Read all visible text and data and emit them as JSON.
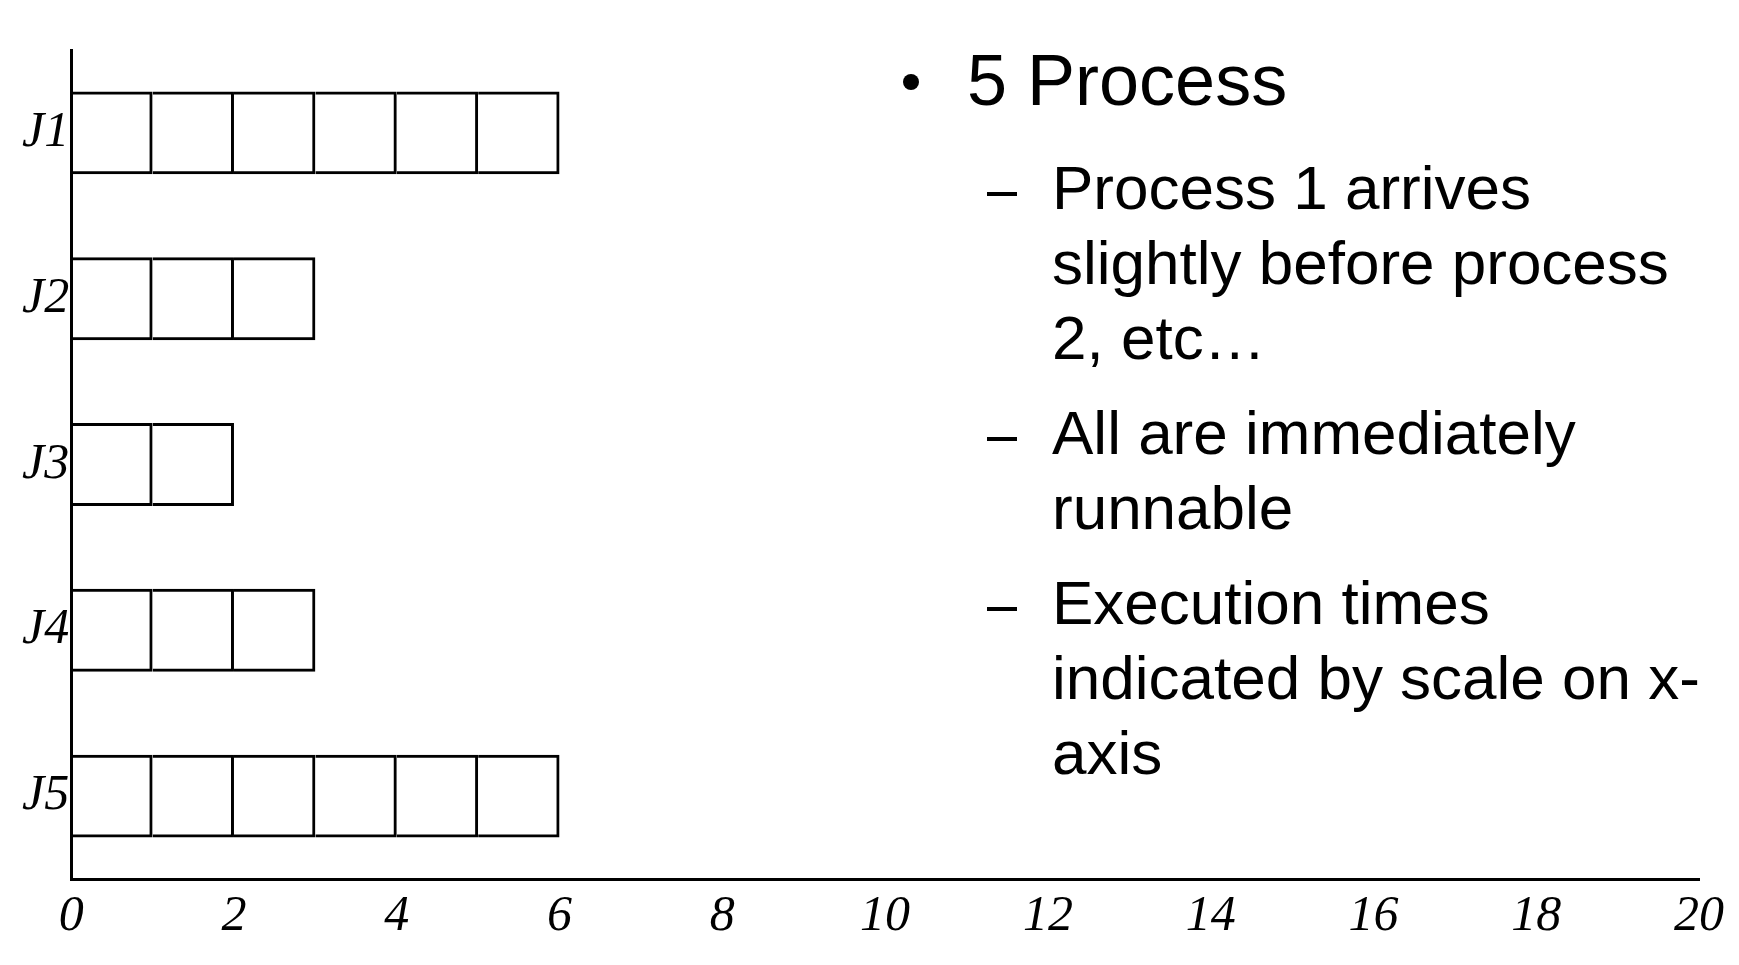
{
  "chart_data": {
    "type": "bar",
    "orientation": "horizontal",
    "categories": [
      "J1",
      "J2",
      "J3",
      "J4",
      "J5"
    ],
    "stacked": true,
    "series": [
      {
        "color": "#000000",
        "values": [
          1,
          1,
          1,
          1,
          1
        ]
      },
      {
        "color": "#000000",
        "values": [
          1,
          1,
          1,
          1,
          1
        ]
      },
      {
        "color": "#000000",
        "values": [
          1,
          1,
          null,
          1,
          1
        ]
      },
      {
        "color": "#000000",
        "values": [
          1,
          null,
          null,
          null,
          1
        ]
      },
      {
        "color": "#000000",
        "values": [
          1,
          null,
          null,
          null,
          1
        ]
      },
      {
        "color": "#000000",
        "values": [
          1,
          null,
          null,
          null,
          1
        ]
      }
    ],
    "xlim": [
      0,
      20
    ],
    "xticks": [
      0,
      2,
      4,
      6,
      8,
      10,
      12,
      14,
      16,
      18,
      20
    ],
    "grid": false,
    "legend": false,
    "annotations": [
      "5 Process",
      "Process 1 arrives slightly before process 2, etc…",
      "All are immediately runnable",
      "Execution times indicated by scale on x-axis"
    ]
  }
}
